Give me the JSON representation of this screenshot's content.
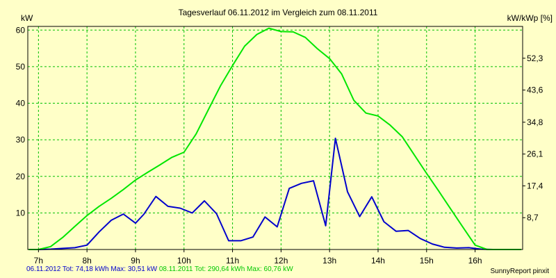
{
  "chart_data": {
    "type": "line",
    "title": "Tagesverlauf 06.11.2012 im Vergleich zum 08.11.2011",
    "ylabel_left": "kW",
    "ylabel_right": "kW/kWp [%]",
    "ylim": [
      0,
      61
    ],
    "xlim": [
      6.78,
      16.98
    ],
    "x_ticks": [
      7,
      8,
      9,
      10,
      11,
      12,
      13,
      14,
      15,
      16
    ],
    "x_tick_labels": [
      "7h",
      "8h",
      "9h",
      "10h",
      "11h",
      "12h",
      "13h",
      "14h",
      "15h",
      "16h"
    ],
    "y_ticks_left": [
      10,
      20,
      30,
      40,
      50,
      60
    ],
    "y_tick_labels_left": [
      "10",
      "20",
      "30",
      "40",
      "50",
      "60"
    ],
    "y_ticks_right_at": [
      8.7,
      17.4,
      26.1,
      34.8,
      43.6,
      52.3
    ],
    "y_tick_labels_right": [
      "8,7",
      "17,4",
      "26,1",
      "34,8",
      "43,6",
      "52,3"
    ],
    "grid": true,
    "series": [
      {
        "name": "06.11.2012",
        "color": "#0000CC",
        "x": [
          6.8,
          7.0,
          7.25,
          7.5,
          7.75,
          8.0,
          8.25,
          8.5,
          8.75,
          9.0,
          9.17,
          9.42,
          9.67,
          9.92,
          10.17,
          10.42,
          10.67,
          10.92,
          11.17,
          11.42,
          11.67,
          11.92,
          12.17,
          12.42,
          12.67,
          12.92,
          13.12,
          13.37,
          13.62,
          13.87,
          14.12,
          14.37,
          14.62,
          14.87,
          15.12,
          15.37,
          15.62,
          15.87,
          16.12,
          16.37,
          16.62,
          16.95
        ],
        "y": [
          0,
          0,
          0.1,
          0.3,
          0.5,
          1.2,
          4.8,
          8.0,
          9.7,
          7.2,
          9.6,
          14.5,
          11.8,
          11.3,
          10.0,
          13.3,
          9.8,
          2.4,
          2.4,
          3.4,
          8.9,
          6.2,
          16.7,
          18.1,
          18.8,
          6.5,
          30.4,
          15.8,
          9.0,
          14.4,
          7.6,
          5.0,
          5.2,
          3.0,
          1.5,
          0.6,
          0.4,
          0.5,
          0.1,
          0,
          0,
          0
        ]
      },
      {
        "name": "08.11.2011",
        "color": "#00E600",
        "x": [
          6.8,
          7.0,
          7.25,
          7.5,
          7.75,
          8.0,
          8.25,
          8.5,
          8.75,
          9.0,
          9.25,
          9.5,
          9.75,
          10.0,
          10.25,
          10.5,
          10.75,
          11.0,
          11.25,
          11.5,
          11.75,
          12.0,
          12.25,
          12.5,
          12.75,
          13.0,
          13.25,
          13.5,
          13.75,
          14.0,
          14.25,
          14.5,
          14.75,
          15.0,
          15.25,
          15.5,
          15.75,
          16.0,
          16.25,
          16.5,
          16.75,
          16.95
        ],
        "y": [
          0,
          0,
          0.8,
          3.3,
          6.3,
          9.3,
          11.8,
          14.0,
          16.4,
          19.0,
          21.1,
          23.1,
          25.2,
          26.6,
          31.6,
          38.2,
          44.7,
          50.3,
          55.6,
          58.8,
          60.5,
          59.6,
          59.5,
          58.0,
          54.9,
          52.2,
          48.0,
          40.8,
          37.3,
          36.5,
          34.0,
          30.8,
          25.8,
          20.8,
          16.0,
          11.0,
          6.1,
          1.2,
          0,
          0,
          0,
          0
        ]
      }
    ]
  },
  "footer": {
    "series1_text": "06.11.2012 Tot: 74,18 kWh Max: 30,51 kW",
    "series2_text": "08.11.2011 Tot: 290,64 kWh Max: 60,76 kW",
    "series1_color": "#0000CC",
    "series2_color": "#00C800",
    "credit": "SunnyReport pinxit"
  },
  "colors": {
    "background": "#FFFFC8",
    "plot_border": "#000000",
    "grid": "#00C000"
  }
}
